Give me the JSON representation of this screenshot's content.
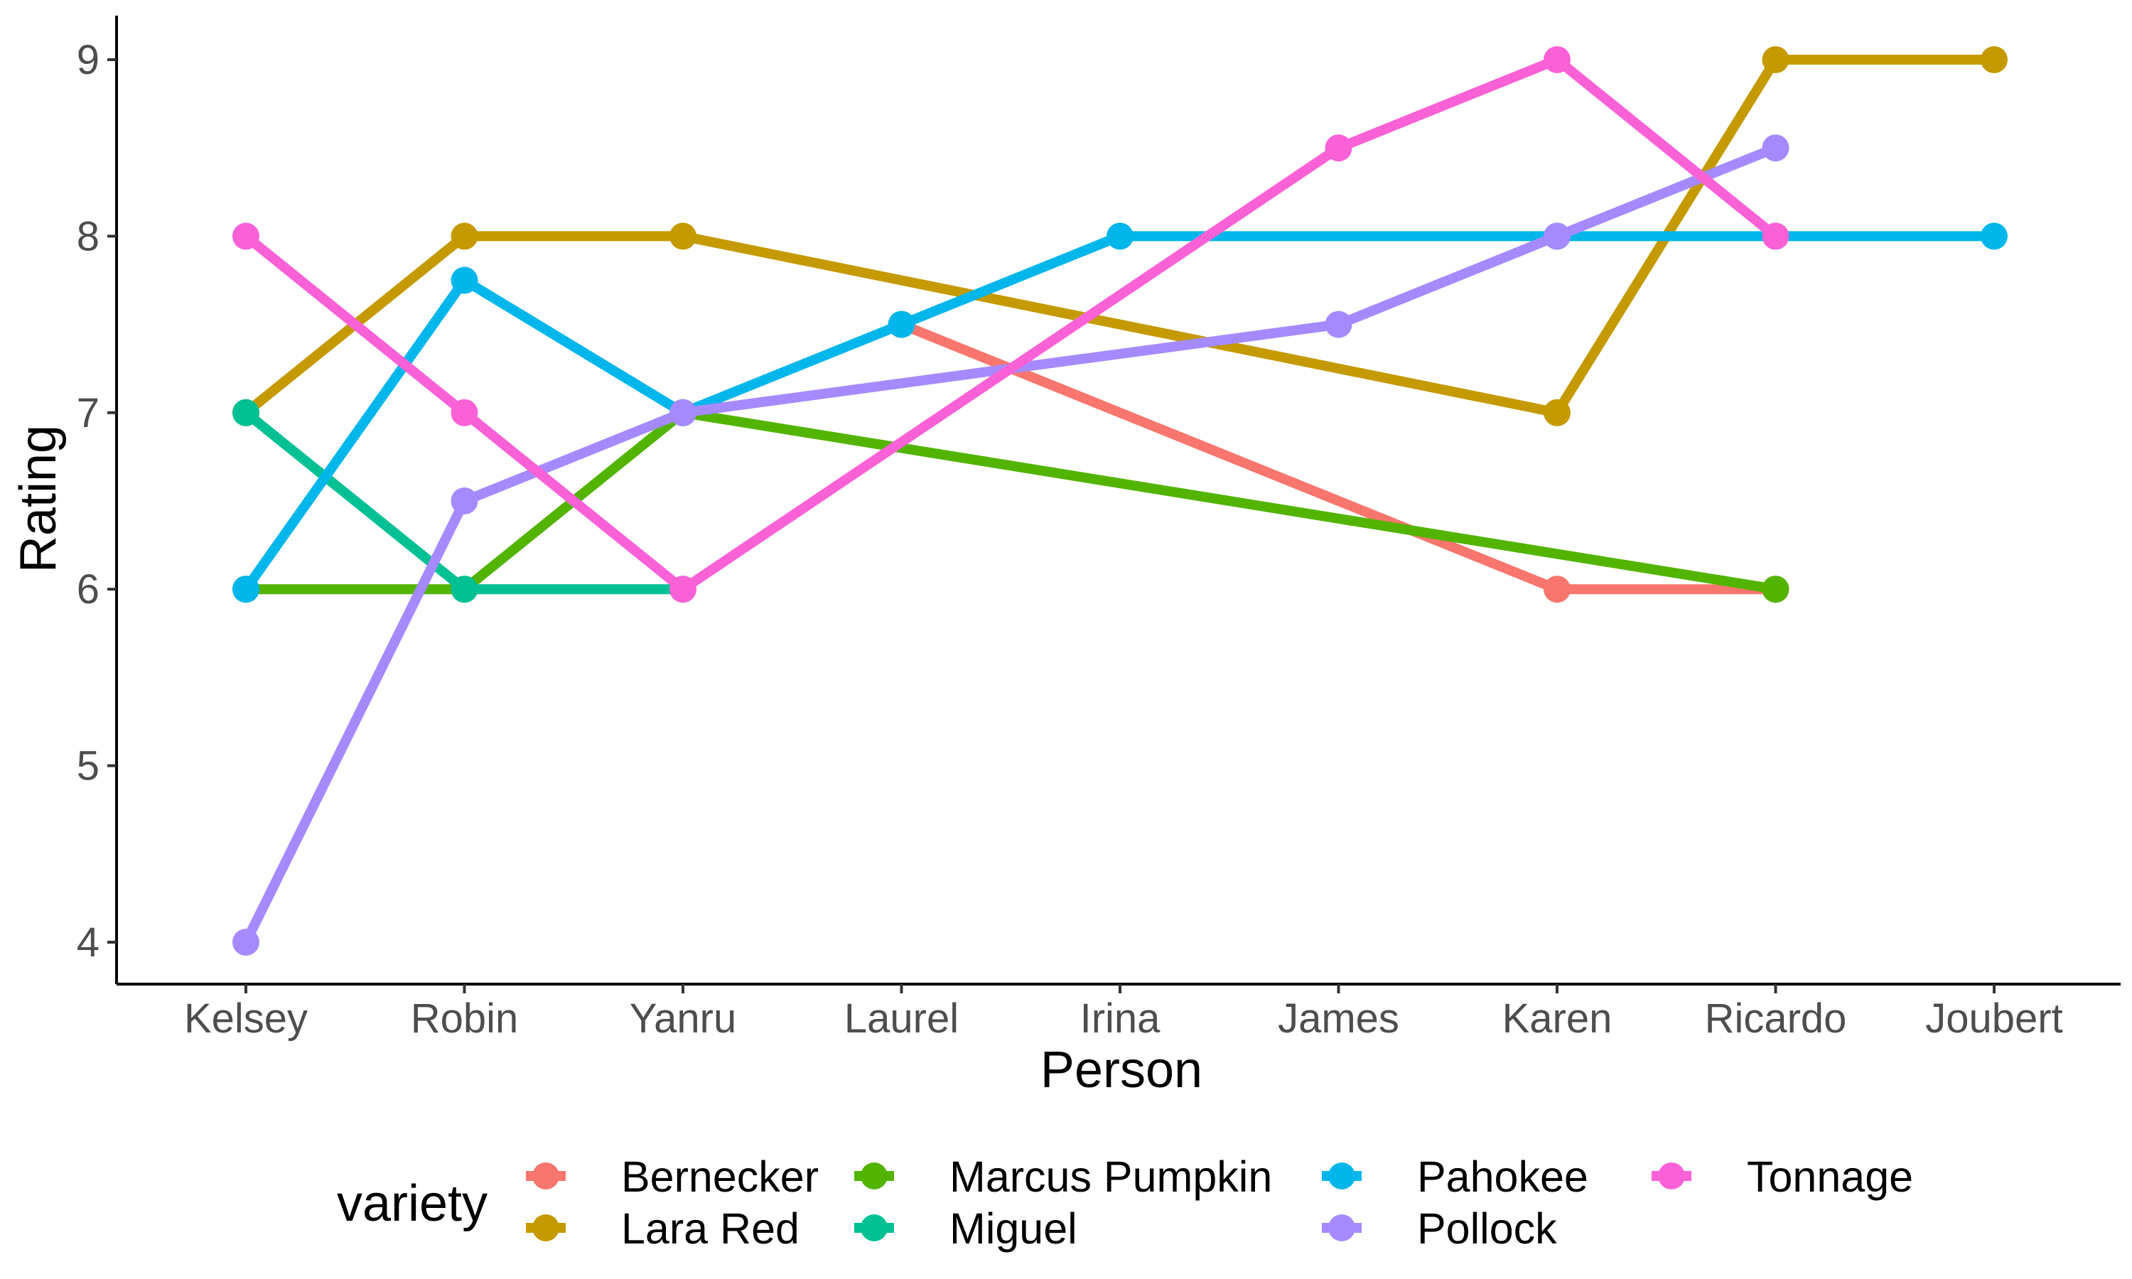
{
  "chart_data": {
    "type": "line",
    "xlabel": "Person",
    "ylabel": "Rating",
    "categories": [
      "Kelsey",
      "Robin",
      "Yanru",
      "Laurel",
      "Irina",
      "James",
      "Karen",
      "Ricardo",
      "Joubert"
    ],
    "ylim": [
      3.8,
      9.25
    ],
    "yticks": [
      4,
      5,
      6,
      7,
      8,
      9
    ],
    "grid": false,
    "legend_title": "variety",
    "legend_position": "bottom",
    "series": [
      {
        "name": "Bernecker",
        "color": "#F8766D",
        "points": [
          {
            "x": "Laurel",
            "y": 7.5
          },
          {
            "x": "Karen",
            "y": 6
          },
          {
            "x": "Ricardo",
            "y": 6
          }
        ]
      },
      {
        "name": "Lara Red",
        "color": "#C49A00",
        "points": [
          {
            "x": "Kelsey",
            "y": 7
          },
          {
            "x": "Robin",
            "y": 8
          },
          {
            "x": "Yanru",
            "y": 8
          },
          {
            "x": "Karen",
            "y": 7
          },
          {
            "x": "Ricardo",
            "y": 9
          },
          {
            "x": "Joubert",
            "y": 9
          }
        ]
      },
      {
        "name": "Marcus Pumpkin",
        "color": "#53B400",
        "points": [
          {
            "x": "Kelsey",
            "y": 6
          },
          {
            "x": "Robin",
            "y": 6
          },
          {
            "x": "Yanru",
            "y": 7
          },
          {
            "x": "Ricardo",
            "y": 6
          }
        ]
      },
      {
        "name": "Miguel",
        "color": "#00C094",
        "points": [
          {
            "x": "Kelsey",
            "y": 7
          },
          {
            "x": "Robin",
            "y": 6
          },
          {
            "x": "Yanru",
            "y": 6
          }
        ]
      },
      {
        "name": "Pahokee",
        "color": "#00B6EB",
        "points": [
          {
            "x": "Kelsey",
            "y": 6
          },
          {
            "x": "Robin",
            "y": 7.75
          },
          {
            "x": "Yanru",
            "y": 7
          },
          {
            "x": "Laurel",
            "y": 7.5
          },
          {
            "x": "Irina",
            "y": 8
          },
          {
            "x": "Karen",
            "y": 8
          },
          {
            "x": "Ricardo",
            "y": 8
          },
          {
            "x": "Joubert",
            "y": 8
          }
        ]
      },
      {
        "name": "Pollock",
        "color": "#A58AFF",
        "points": [
          {
            "x": "Kelsey",
            "y": 4
          },
          {
            "x": "Robin",
            "y": 6.5
          },
          {
            "x": "Yanru",
            "y": 7
          },
          {
            "x": "James",
            "y": 7.5
          },
          {
            "x": "Karen",
            "y": 8
          },
          {
            "x": "Ricardo",
            "y": 8.5
          }
        ]
      },
      {
        "name": "Tonnage",
        "color": "#FB61D7",
        "points": [
          {
            "x": "Kelsey",
            "y": 8
          },
          {
            "x": "Robin",
            "y": 7
          },
          {
            "x": "Yanru",
            "y": 6
          },
          {
            "x": "James",
            "y": 8.5
          },
          {
            "x": "Karen",
            "y": 9
          },
          {
            "x": "Ricardo",
            "y": 8
          }
        ]
      }
    ]
  }
}
